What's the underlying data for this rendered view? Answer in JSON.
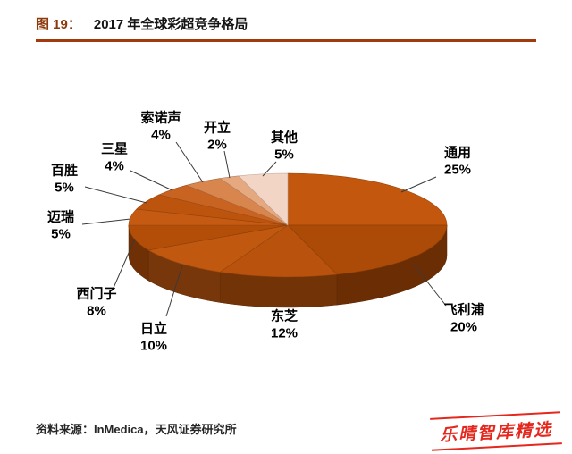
{
  "header": {
    "figure_label": "图 19：",
    "title": "2017 年全球彩超竞争格局"
  },
  "footer": {
    "source": "资料来源：InMedica，天风证券研究所",
    "watermark": "乐晴智库精选"
  },
  "chart_data": {
    "type": "pie",
    "style": "3d",
    "title": "2017 年全球彩超竞争格局",
    "unit": "%",
    "direction": "clockwise",
    "start_angle_deg": 0,
    "legend": "none",
    "label_format": "{label} {value}%",
    "series": [
      {
        "label": "通用",
        "value": 25,
        "color": "#C3570E"
      },
      {
        "label": "飞利浦",
        "value": 20,
        "color": "#AC4A07"
      },
      {
        "label": "东芝",
        "value": 12,
        "color": "#B8520C"
      },
      {
        "label": "日立",
        "value": 10,
        "color": "#C05810"
      },
      {
        "label": "西门子",
        "value": 8,
        "color": "#B34E09"
      },
      {
        "label": "迈瑞",
        "value": 5,
        "color": "#C55B12"
      },
      {
        "label": "百胜",
        "value": 5,
        "color": "#BC540E"
      },
      {
        "label": "三星",
        "value": 4,
        "color": "#C96322"
      },
      {
        "label": "索诺声",
        "value": 4,
        "color": "#D8854E"
      },
      {
        "label": "开立",
        "value": 2,
        "color": "#E6A87F"
      },
      {
        "label": "其他",
        "value": 5,
        "color": "#F3D5C6"
      }
    ]
  }
}
